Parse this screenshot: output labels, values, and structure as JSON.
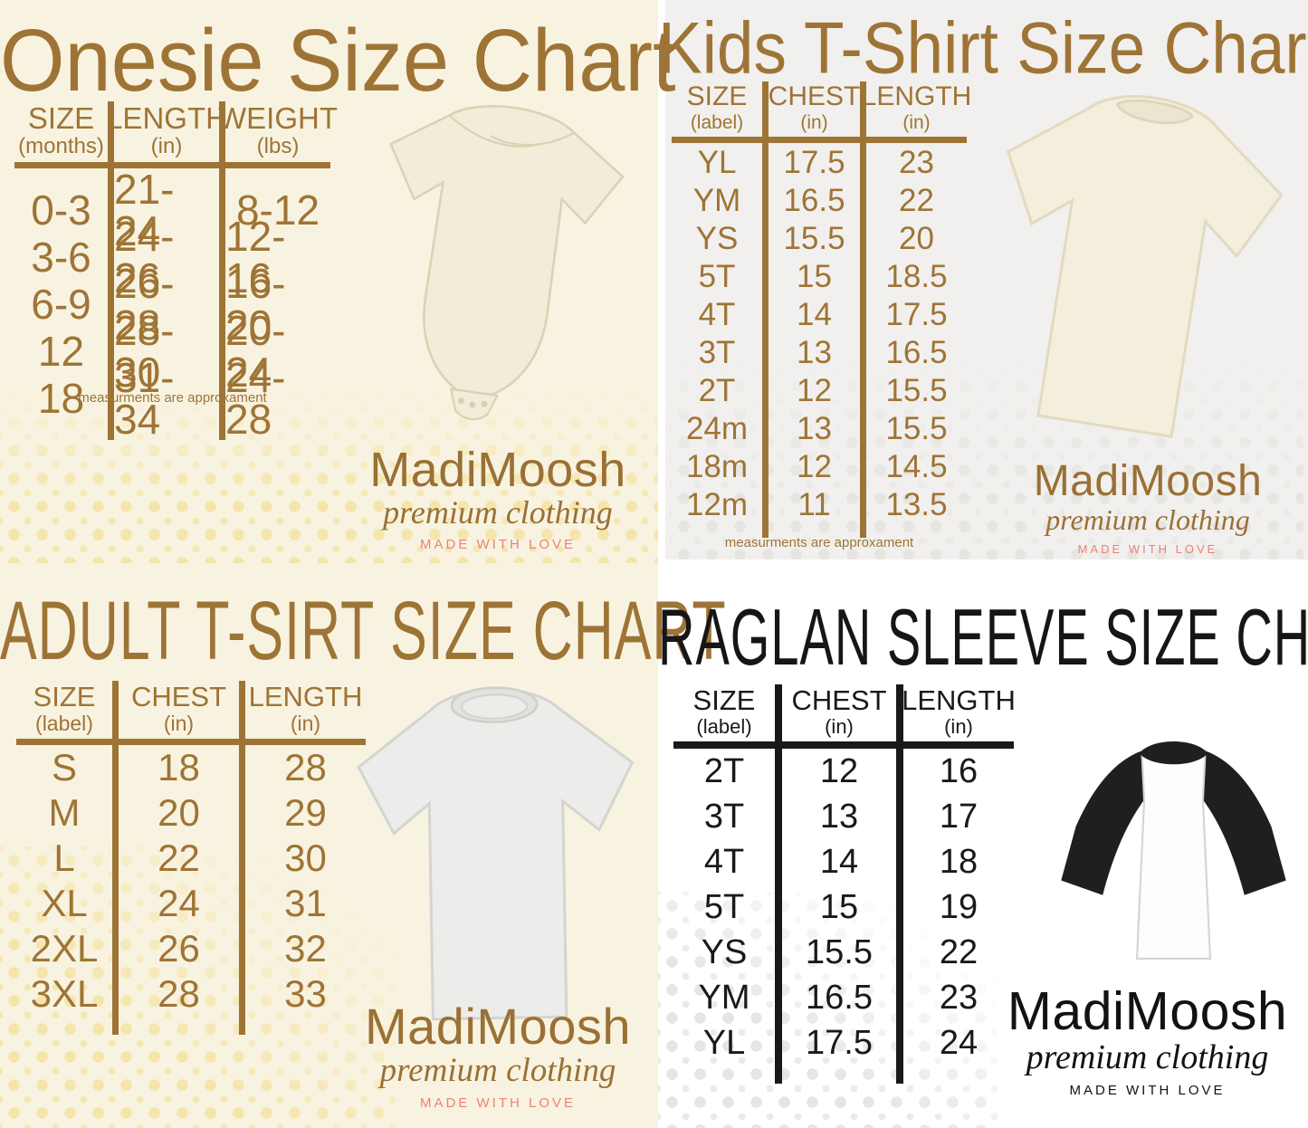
{
  "chart_data": [
    {
      "type": "table",
      "title": "Onesie Size Chart",
      "columns": [
        {
          "label": "SIZE",
          "sub": "(months)"
        },
        {
          "label": "LENGTH",
          "sub": "(in)"
        },
        {
          "label": "WEIGHT",
          "sub": "(lbs)"
        }
      ],
      "rows": [
        [
          "0-3",
          "21-24",
          "8-12"
        ],
        [
          "3-6",
          "24-26",
          "12-16"
        ],
        [
          "6-9",
          "26-28",
          "16-20"
        ],
        [
          "12",
          "28-30",
          "20-24"
        ],
        [
          "18",
          "31-34",
          "24-28"
        ]
      ],
      "note": "measurments are approxament"
    },
    {
      "type": "table",
      "title": "Kids T-Shirt Size Chart",
      "columns": [
        {
          "label": "SIZE",
          "sub": "(label)"
        },
        {
          "label": "CHEST",
          "sub": "(in)"
        },
        {
          "label": "LENGTH",
          "sub": "(in)"
        }
      ],
      "rows": [
        [
          "YL",
          "17.5",
          "23"
        ],
        [
          "YM",
          "16.5",
          "22"
        ],
        [
          "YS",
          "15.5",
          "20"
        ],
        [
          "5T",
          "15",
          "18.5"
        ],
        [
          "4T",
          "14",
          "17.5"
        ],
        [
          "3T",
          "13",
          "16.5"
        ],
        [
          "2T",
          "12",
          "15.5"
        ],
        [
          "24m",
          "13",
          "15.5"
        ],
        [
          "18m",
          "12",
          "14.5"
        ],
        [
          "12m",
          "11",
          "13.5"
        ]
      ],
      "note": "measurments are approxament"
    },
    {
      "type": "table",
      "title": "ADULT T-SIRT SIZE CHART",
      "columns": [
        {
          "label": "SIZE",
          "sub": "(label)"
        },
        {
          "label": "CHEST",
          "sub": "(in)"
        },
        {
          "label": "LENGTH",
          "sub": "(in)"
        }
      ],
      "rows": [
        [
          "S",
          "18",
          "28"
        ],
        [
          "M",
          "20",
          "29"
        ],
        [
          "L",
          "22",
          "30"
        ],
        [
          "XL",
          "24",
          "31"
        ],
        [
          "2XL",
          "26",
          "32"
        ],
        [
          "3XL",
          "28",
          "33"
        ]
      ]
    },
    {
      "type": "table",
      "title": "RAGLAN SLEEVE SIZE CHART",
      "columns": [
        {
          "label": "SIZE",
          "sub": "(label)"
        },
        {
          "label": "CHEST",
          "sub": "(in)"
        },
        {
          "label": "LENGTH",
          "sub": "(in)"
        }
      ],
      "rows": [
        [
          "2T",
          "12",
          "16"
        ],
        [
          "3T",
          "13",
          "17"
        ],
        [
          "4T",
          "14",
          "18"
        ],
        [
          "5T",
          "15",
          "19"
        ],
        [
          "YS",
          "15.5",
          "22"
        ],
        [
          "YM",
          "16.5",
          "23"
        ],
        [
          "YL",
          "17.5",
          "24"
        ]
      ]
    }
  ],
  "logo": {
    "brand": "MadiMoosh",
    "tagline": "premium clothing",
    "motto": "MADE WITH LOVE"
  },
  "colors": {
    "brown": "#9e7436",
    "black": "#191919",
    "salmon": "#ee8178",
    "cream_background": "#f8f3e0",
    "gray_background": "#f1f0ee",
    "white_background": "#ffffff"
  }
}
